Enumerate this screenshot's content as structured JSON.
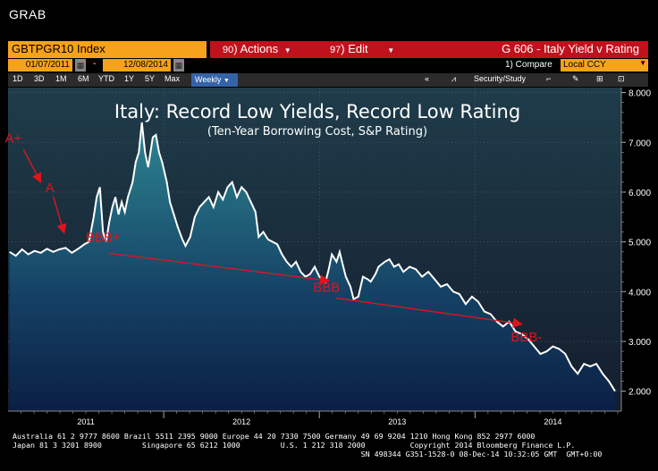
{
  "window": {
    "title": "GRAB"
  },
  "toolbar": {
    "ticker": "GBTPGR10 Index",
    "actions": {
      "num": "90",
      "label": "Actions"
    },
    "edit": {
      "num": "97",
      "label": "Edit"
    },
    "chart_title": "G 606 - Italy Yield v Rating"
  },
  "dates": {
    "start": "01/07/2011",
    "end": "12/08/2014"
  },
  "compare": {
    "label": "1) Compare",
    "ccy": "Local CCY"
  },
  "periods": [
    "1D",
    "3D",
    "1M",
    "6M",
    "YTD",
    "1Y",
    "5Y",
    "Max"
  ],
  "frequency": "Weekly",
  "tools": {
    "security": "Security/Study"
  },
  "chart_data": {
    "type": "line",
    "title": "Italy: Record Low Yields, Record Low Rating",
    "subtitle": "(Ten-Year Borrowing Cost, S&P Rating)",
    "x_ticks": [
      "2011",
      "2012",
      "2013",
      "2014"
    ],
    "y_ticks": [
      "2.000",
      "3.000",
      "4.000",
      "5.000",
      "6.000",
      "7.000",
      "8.000"
    ],
    "ylim": [
      1.6,
      8.1
    ],
    "xlim": [
      2011.0,
      2014.94
    ],
    "grid": true,
    "colors": {
      "line": "#ffffff",
      "arrow": "#e0141c",
      "fill_top": "#2f8a96",
      "fill_bottom": "#0b1f44",
      "bg": "#1d2f42"
    },
    "series": [
      {
        "values": [
          [
            2011.01,
            4.8
          ],
          [
            2011.05,
            4.72
          ],
          [
            2011.09,
            4.85
          ],
          [
            2011.13,
            4.75
          ],
          [
            2011.17,
            4.82
          ],
          [
            2011.21,
            4.78
          ],
          [
            2011.25,
            4.86
          ],
          [
            2011.29,
            4.8
          ],
          [
            2011.33,
            4.85
          ],
          [
            2011.37,
            4.88
          ],
          [
            2011.41,
            4.78
          ],
          [
            2011.45,
            4.86
          ],
          [
            2011.49,
            4.95
          ],
          [
            2011.52,
            5.0
          ],
          [
            2011.55,
            5.5
          ],
          [
            2011.57,
            5.9
          ],
          [
            2011.59,
            6.1
          ],
          [
            2011.61,
            5.2
          ],
          [
            2011.63,
            5.0
          ],
          [
            2011.65,
            5.4
          ],
          [
            2011.67,
            5.7
          ],
          [
            2011.69,
            5.9
          ],
          [
            2011.71,
            5.55
          ],
          [
            2011.73,
            5.8
          ],
          [
            2011.75,
            5.6
          ],
          [
            2011.77,
            5.9
          ],
          [
            2011.8,
            6.2
          ],
          [
            2011.82,
            6.6
          ],
          [
            2011.84,
            6.8
          ],
          [
            2011.86,
            7.4
          ],
          [
            2011.88,
            6.8
          ],
          [
            2011.9,
            6.5
          ],
          [
            2011.93,
            7.1
          ],
          [
            2011.95,
            7.15
          ],
          [
            2011.97,
            6.8
          ],
          [
            2011.99,
            6.6
          ],
          [
            2012.02,
            6.2
          ],
          [
            2012.04,
            5.8
          ],
          [
            2012.06,
            5.6
          ],
          [
            2012.09,
            5.3
          ],
          [
            2012.12,
            5.05
          ],
          [
            2012.14,
            4.92
          ],
          [
            2012.17,
            5.1
          ],
          [
            2012.2,
            5.5
          ],
          [
            2012.23,
            5.7
          ],
          [
            2012.26,
            5.8
          ],
          [
            2012.29,
            5.9
          ],
          [
            2012.32,
            5.7
          ],
          [
            2012.35,
            6.0
          ],
          [
            2012.38,
            5.85
          ],
          [
            2012.41,
            6.1
          ],
          [
            2012.44,
            6.2
          ],
          [
            2012.47,
            5.9
          ],
          [
            2012.5,
            6.1
          ],
          [
            2012.53,
            6.0
          ],
          [
            2012.56,
            5.8
          ],
          [
            2012.59,
            5.6
          ],
          [
            2012.61,
            5.1
          ],
          [
            2012.64,
            5.2
          ],
          [
            2012.67,
            5.05
          ],
          [
            2012.7,
            5.0
          ],
          [
            2012.73,
            4.95
          ],
          [
            2012.76,
            4.75
          ],
          [
            2012.79,
            4.6
          ],
          [
            2012.82,
            4.5
          ],
          [
            2012.85,
            4.6
          ],
          [
            2012.88,
            4.4
          ],
          [
            2012.91,
            4.3
          ],
          [
            2012.94,
            4.35
          ],
          [
            2012.97,
            4.5
          ],
          [
            2013.0,
            4.3
          ],
          [
            2013.04,
            4.2
          ],
          [
            2013.06,
            4.45
          ],
          [
            2013.08,
            4.75
          ],
          [
            2013.11,
            4.6
          ],
          [
            2013.13,
            4.8
          ],
          [
            2013.15,
            4.55
          ],
          [
            2013.17,
            4.3
          ],
          [
            2013.2,
            4.1
          ],
          [
            2013.22,
            3.85
          ],
          [
            2013.25,
            3.9
          ],
          [
            2013.28,
            4.3
          ],
          [
            2013.31,
            4.25
          ],
          [
            2013.33,
            4.2
          ],
          [
            2013.36,
            4.35
          ],
          [
            2013.38,
            4.5
          ],
          [
            2013.42,
            4.6
          ],
          [
            2013.45,
            4.65
          ],
          [
            2013.48,
            4.5
          ],
          [
            2013.51,
            4.55
          ],
          [
            2013.54,
            4.4
          ],
          [
            2013.58,
            4.5
          ],
          [
            2013.62,
            4.45
          ],
          [
            2013.66,
            4.3
          ],
          [
            2013.7,
            4.4
          ],
          [
            2013.74,
            4.25
          ],
          [
            2013.78,
            4.1
          ],
          [
            2013.82,
            4.15
          ],
          [
            2013.86,
            4.0
          ],
          [
            2013.9,
            3.95
          ],
          [
            2013.94,
            3.75
          ],
          [
            2013.98,
            3.9
          ],
          [
            2014.02,
            3.8
          ],
          [
            2014.06,
            3.6
          ],
          [
            2014.1,
            3.55
          ],
          [
            2014.14,
            3.4
          ],
          [
            2014.18,
            3.3
          ],
          [
            2014.22,
            3.4
          ],
          [
            2014.26,
            3.2
          ],
          [
            2014.3,
            3.15
          ],
          [
            2014.34,
            3.05
          ],
          [
            2014.38,
            2.9
          ],
          [
            2014.42,
            2.75
          ],
          [
            2014.46,
            2.8
          ],
          [
            2014.5,
            2.9
          ],
          [
            2014.54,
            2.85
          ],
          [
            2014.58,
            2.75
          ],
          [
            2014.62,
            2.5
          ],
          [
            2014.66,
            2.35
          ],
          [
            2014.7,
            2.55
          ],
          [
            2014.74,
            2.5
          ],
          [
            2014.78,
            2.55
          ],
          [
            2014.82,
            2.35
          ],
          [
            2014.86,
            2.2
          ],
          [
            2014.9,
            2.0
          ]
        ]
      }
    ],
    "annotations": [
      {
        "text": "A+",
        "x": 2010.98,
        "y": 7.0
      },
      {
        "text": "A",
        "x": 2011.24,
        "y": 6.0
      },
      {
        "text": "BBB+",
        "x": 2011.5,
        "y": 5.0
      },
      {
        "text": "BBB",
        "x": 2012.96,
        "y": 4.0
      },
      {
        "text": "BBB-",
        "x": 2014.23,
        "y": 3.0
      }
    ],
    "arrows": [
      {
        "from": [
          2011.1,
          6.85
        ],
        "to": [
          2011.21,
          6.2
        ]
      },
      {
        "from": [
          2011.29,
          5.92
        ],
        "to": [
          2011.36,
          5.18
        ]
      },
      {
        "from": [
          2011.65,
          4.77
        ],
        "to": [
          2013.06,
          4.22
        ]
      },
      {
        "from": [
          2013.11,
          3.87
        ],
        "to": [
          2014.3,
          3.35
        ]
      }
    ]
  },
  "footer": {
    "line1": "Australia 61 2 9777 8600 Brazil 5511 2395 9000 Europe 44 20 7330 7500 Germany 49 69 9204 1210 Hong Kong 852 2977 6000",
    "line2": "Japan 81 3 3201 8900         Singapore 65 6212 1000         U.S. 1 212 318 2000          Copyright 2014 Bloomberg Finance L.P.",
    "line3": "                                                                              SN 498344 G351-1528-0 08-Dec-14 10:32:05 GMT  GMT+0:00"
  }
}
